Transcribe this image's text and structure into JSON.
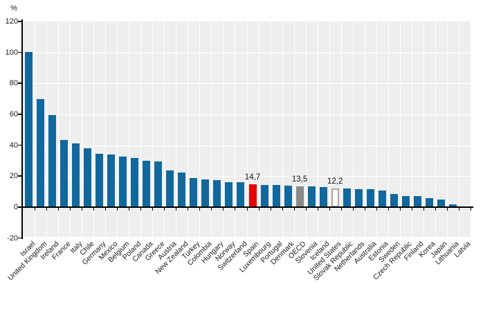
{
  "chart_data": {
    "type": "bar",
    "title": "",
    "unit_label": "%",
    "xlabel": "",
    "ylabel": "%",
    "ylim": [
      -20,
      120
    ],
    "yticks": [
      -20,
      0,
      20,
      40,
      60,
      80,
      100,
      120
    ],
    "grid": "white gridlines on light-gray plot background, vertical line between every bar",
    "legend": "none",
    "decimal_separator": ",",
    "categories": [
      "Israel",
      "United Kingdom",
      "Ireland",
      "France",
      "Italy",
      "Chile",
      "Germany",
      "Mexico",
      "Belgium",
      "Poland",
      "Canada",
      "Greece",
      "Austria",
      "New Zealand",
      "Turkey",
      "Colombia",
      "Hungary",
      "Norway",
      "Switzerland",
      "Spain",
      "Luxembourg",
      "Portugal",
      "Denmark",
      "OECD",
      "Slovenia",
      "Iceland",
      "United States",
      "Slovak Republic",
      "Netherlands",
      "Australia",
      "Estonia",
      "Sweden",
      "Czech Republic",
      "Finland",
      "Korea",
      "Japan",
      "Lithuania",
      "Latvia"
    ],
    "values": [
      100.5,
      70.0,
      59.5,
      43.4,
      41.3,
      37.9,
      34.5,
      34.2,
      32.9,
      31.9,
      30.2,
      29.4,
      23.8,
      22.4,
      18.8,
      17.8,
      17.3,
      16.0,
      15.9,
      14.7,
      14.3,
      14.2,
      14.1,
      13.5,
      13.4,
      12.8,
      12.2,
      12.1,
      11.8,
      11.7,
      10.7,
      8.5,
      7.3,
      7.0,
      5.7,
      5.1,
      1.8,
      0.5
    ],
    "value_labels": [
      {
        "category": "Spain",
        "text": "14,7"
      },
      {
        "category": "OECD",
        "text": "13,5"
      },
      {
        "category": "United States",
        "text": "12,2"
      }
    ],
    "colors": {
      "default_bar": "#11689d",
      "plot_background": "#eeeeee",
      "gridline": "#ffffff",
      "axis": "#000000",
      "text": "#1a1a1a"
    },
    "highlights": [
      {
        "category": "Spain",
        "fill": "#e90000"
      },
      {
        "category": "OECD",
        "fill": "#8a8a8a"
      },
      {
        "category": "United States",
        "fill": "#ffffff",
        "border": "#a9a9a9"
      }
    ]
  }
}
